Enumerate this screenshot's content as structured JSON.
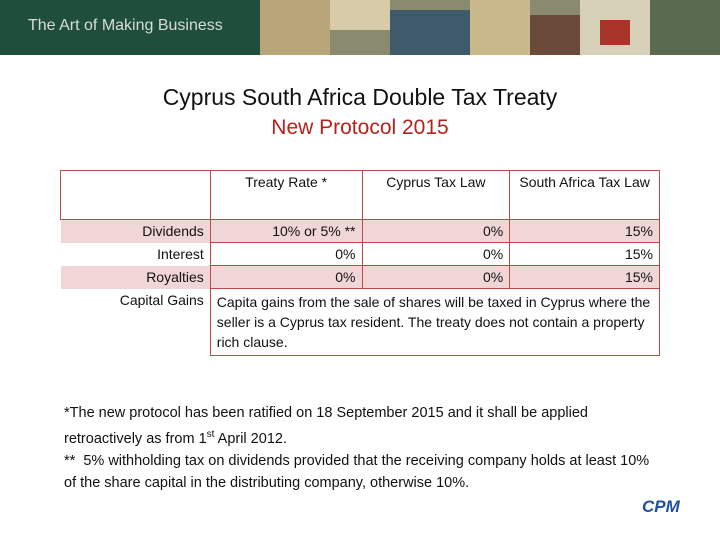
{
  "header": {
    "brand": "The Art of Making Business"
  },
  "title": "Cyprus South Africa Double Tax Treaty",
  "subtitle": "New Protocol 2015",
  "table": {
    "columns": [
      "Treaty Rate *",
      "Cyprus  Tax Law",
      "South Africa Tax Law"
    ],
    "rows": [
      [
        "Dividends",
        "10% or 5% **",
        "0%",
        "15%"
      ],
      [
        "Interest",
        "0%",
        "0%",
        "15%"
      ],
      [
        "Royalties",
        "0%",
        "0%",
        "15%"
      ],
      [
        "Capital Gains",
        "Capita gains from the sale of shares will be taxed in Cyprus where the seller is a Cyprus tax resident. The treaty does not contain a property rich clause."
      ]
    ]
  },
  "notes": {
    "first": "*The new protocol has been ratified on 18 September 2015 and it shall be applied retroactively as from 1",
    "superscript": "st",
    "first_end": " April 2012.",
    "second": "**  5% withholding tax on dividends provided that the receiving company holds at least 10% of the share capital in the distributing company, otherwise 10%."
  },
  "logo": "CPM"
}
